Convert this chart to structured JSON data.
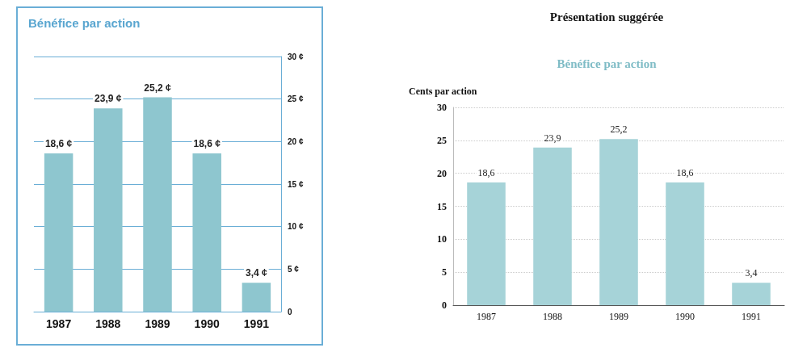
{
  "chart_data": [
    {
      "type": "bar",
      "title": "Bénéfice par action",
      "categories": [
        "1987",
        "1988",
        "1989",
        "1990",
        "1991"
      ],
      "values": [
        18.6,
        23.9,
        25.2,
        18.6,
        3.4
      ],
      "color": "#8ec6cf",
      "value_labels": [
        "18,6 ¢",
        "23,9 ¢",
        "25,2 ¢",
        "18,6 ¢",
        "3,4 ¢"
      ],
      "ylim": [
        0,
        30
      ],
      "yticks": [
        0,
        {
          "value": 5,
          "label": "5 ¢"
        },
        {
          "value": 10,
          "label": "10 ¢"
        },
        {
          "value": 15,
          "label": "15 ¢"
        },
        {
          "value": 20,
          "label": "20 ¢"
        },
        {
          "value": 25,
          "label": "25 ¢"
        },
        {
          "value": 30,
          "label": "30 ¢"
        }
      ],
      "grid": "y"
    },
    {
      "type": "bar",
      "title": "Présentation suggérée",
      "subtitle": "Bénéfice par action",
      "ylabel": "Cents par action",
      "categories": [
        "1987",
        "1988",
        "1989",
        "1990",
        "1991"
      ],
      "values": [
        18.6,
        23.9,
        25.2,
        18.6,
        3.4
      ],
      "color": "#a6d3d8",
      "value_labels": [
        "18,6",
        "23,9",
        "25,2",
        "18,6",
        "3,4"
      ],
      "ylim": [
        0,
        30
      ],
      "yticks": [
        0,
        5,
        10,
        15,
        20,
        25,
        30
      ],
      "grid": "y"
    }
  ]
}
